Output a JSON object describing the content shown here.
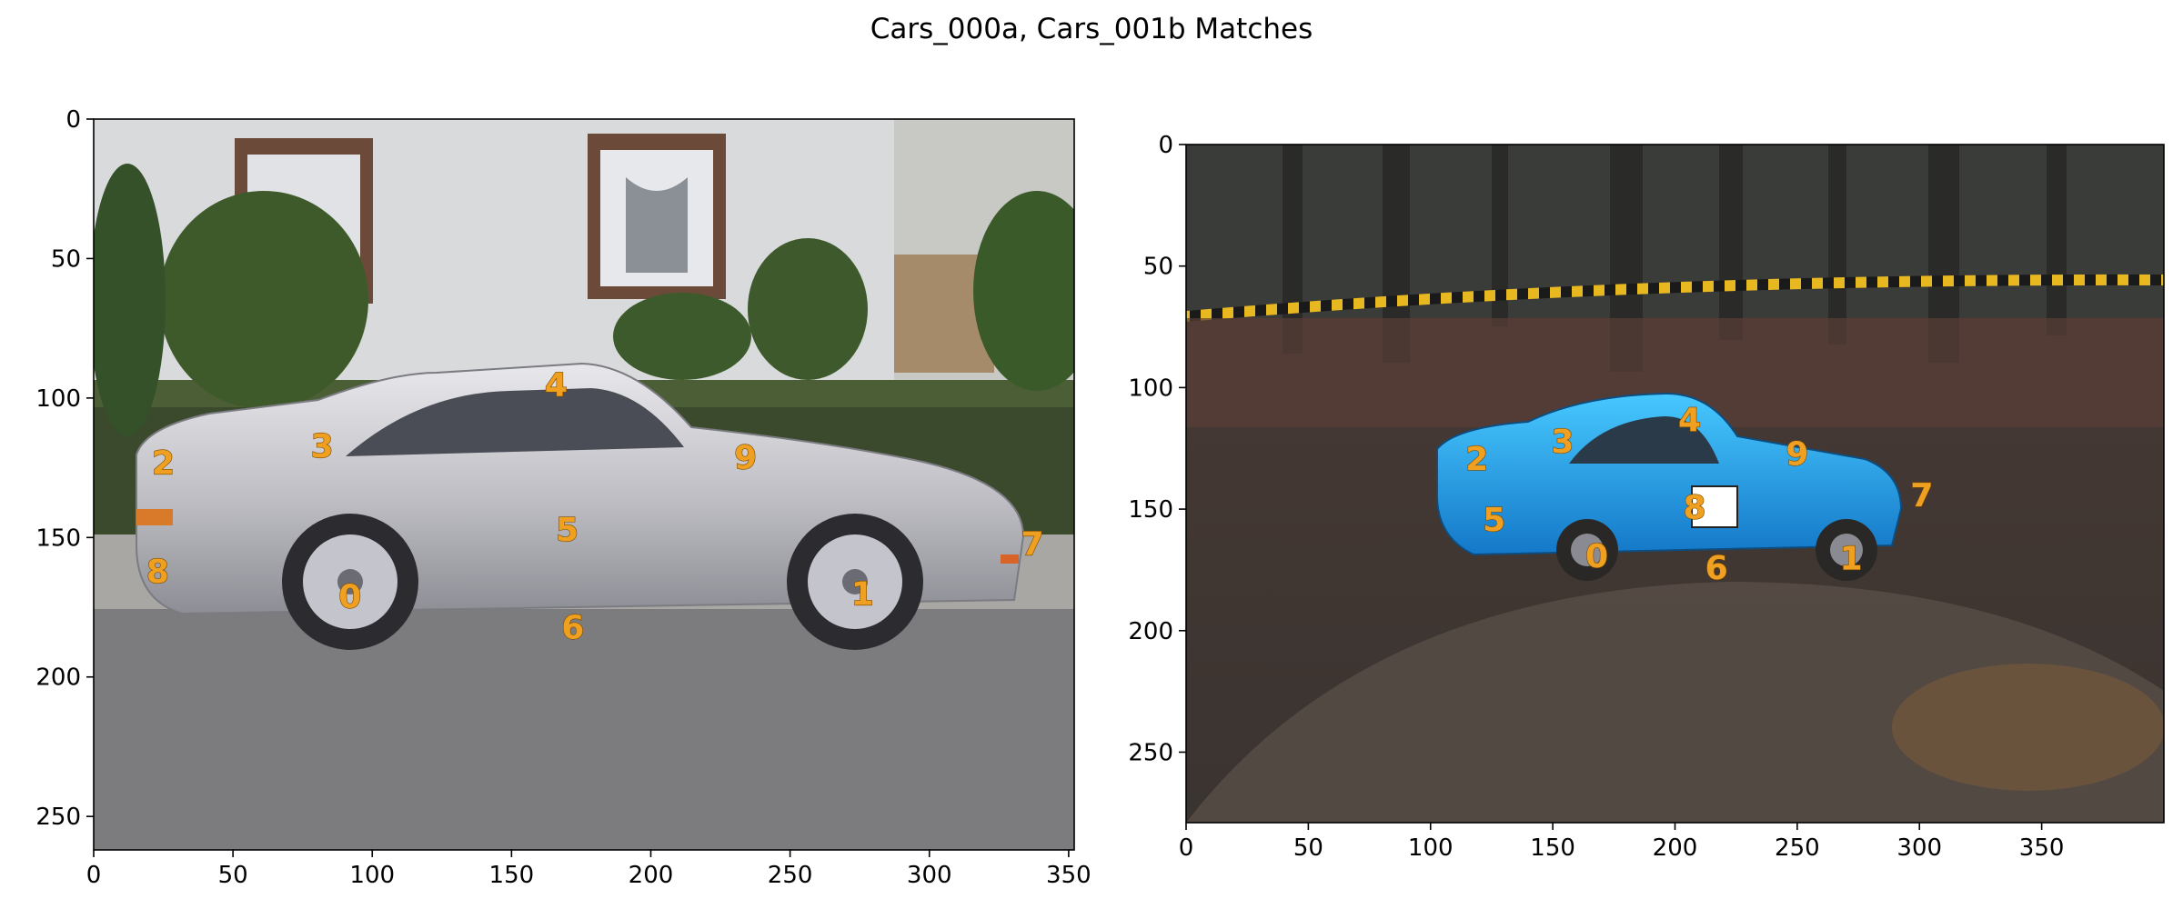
{
  "figure": {
    "title": "Cars_000a, Cars_001b Matches"
  },
  "chart_data": [
    {
      "type": "scatter",
      "image": "silver Porsche sports car parked beside a white house with hedges and windows",
      "xlim": [
        0,
        352
      ],
      "ylim": [
        262,
        0
      ],
      "xticks": [
        0,
        50,
        100,
        150,
        200,
        250,
        300,
        350
      ],
      "yticks": [
        0,
        50,
        100,
        150,
        200,
        250
      ],
      "keypoint_color": "#f0a020",
      "points": [
        {
          "label": "0",
          "x": 92,
          "y": 171
        },
        {
          "label": "1",
          "x": 276,
          "y": 170
        },
        {
          "label": "2",
          "x": 25,
          "y": 123
        },
        {
          "label": "3",
          "x": 82,
          "y": 117
        },
        {
          "label": "4",
          "x": 166,
          "y": 95
        },
        {
          "label": "5",
          "x": 170,
          "y": 147
        },
        {
          "label": "6",
          "x": 172,
          "y": 182
        },
        {
          "label": "7",
          "x": 337,
          "y": 152
        },
        {
          "label": "8",
          "x": 23,
          "y": 162
        },
        {
          "label": "9",
          "x": 234,
          "y": 121
        }
      ]
    },
    {
      "type": "scatter",
      "image": "blue rally car sliding on a muddy forest track with striped tape behind",
      "xlim": [
        0,
        400
      ],
      "ylim": [
        279,
        0
      ],
      "xticks": [
        0,
        50,
        100,
        150,
        200,
        250,
        300,
        350
      ],
      "yticks": [
        0,
        50,
        100,
        150,
        200,
        250
      ],
      "keypoint_color": "#f0a020",
      "points": [
        {
          "label": "0",
          "x": 168,
          "y": 169
        },
        {
          "label": "1",
          "x": 272,
          "y": 170
        },
        {
          "label": "2",
          "x": 119,
          "y": 129
        },
        {
          "label": "3",
          "x": 154,
          "y": 122
        },
        {
          "label": "4",
          "x": 206,
          "y": 113
        },
        {
          "label": "5",
          "x": 126,
          "y": 154
        },
        {
          "label": "6",
          "x": 217,
          "y": 174
        },
        {
          "label": "7",
          "x": 301,
          "y": 144
        },
        {
          "label": "8",
          "x": 208,
          "y": 149
        },
        {
          "label": "9",
          "x": 250,
          "y": 127
        }
      ]
    }
  ]
}
